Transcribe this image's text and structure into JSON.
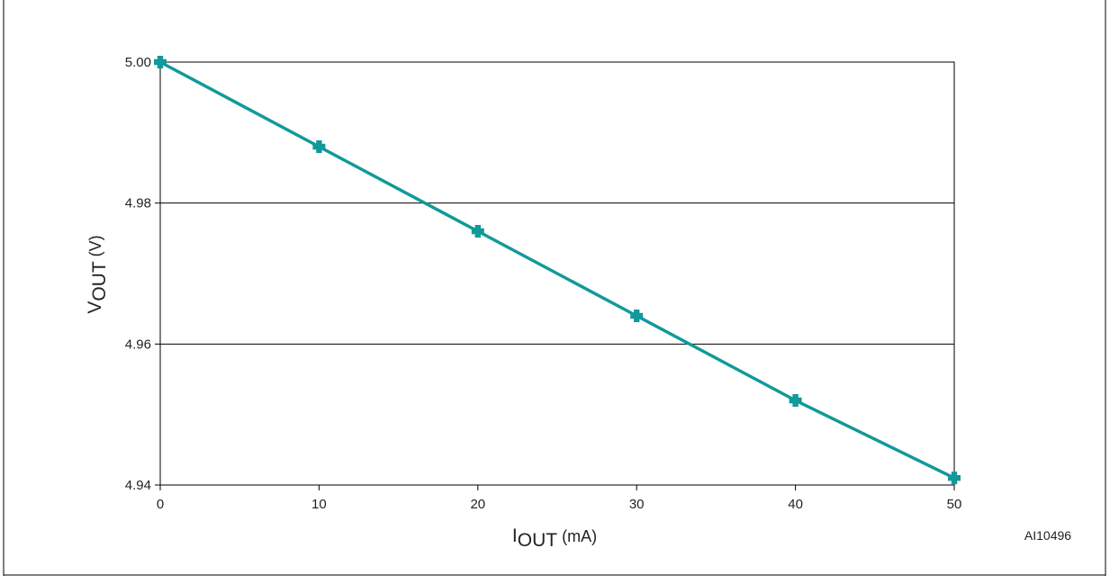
{
  "chart_data": {
    "type": "line",
    "x": [
      0,
      10,
      20,
      30,
      40,
      50
    ],
    "series": [
      {
        "values": [
          5.0,
          4.988,
          4.976,
          4.964,
          4.952,
          4.941
        ]
      }
    ],
    "xlabel": {
      "main": "I",
      "sub": "OUT",
      "unit": " (mA)"
    },
    "ylabel": {
      "main": "V",
      "sub": "OUT",
      "unit": " (V)"
    },
    "xlim": [
      0,
      50
    ],
    "ylim": [
      4.94,
      5.0
    ],
    "x_ticks": [
      "0",
      "10",
      "20",
      "30",
      "40",
      "50"
    ],
    "y_ticks": [
      "4.94",
      "4.96",
      "4.98",
      "5.00"
    ],
    "grid": "horizontal",
    "marker": "cross",
    "colors": {
      "series": "#12999a",
      "axes": "#000000",
      "grid": "#000000"
    }
  },
  "figure_code": "AI10496"
}
